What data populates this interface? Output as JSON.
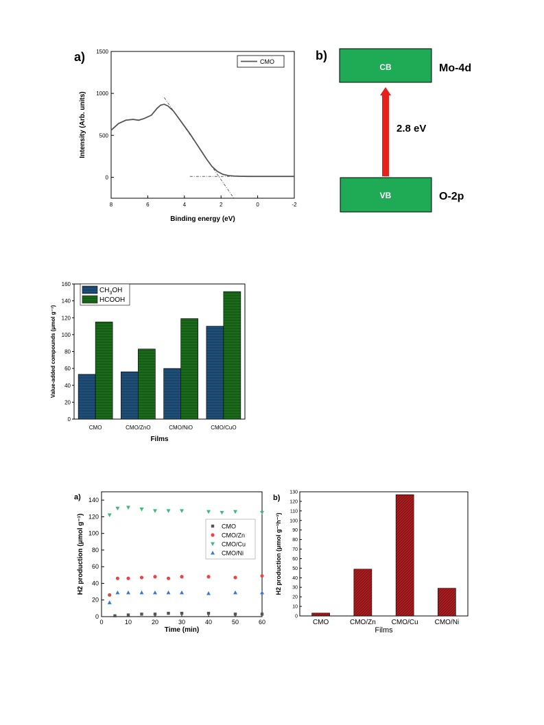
{
  "colors": {
    "band_green": "#1faa56",
    "arrow_red": "#e5211b",
    "bar_blue": "#1f4e79",
    "bar_green": "#1a6b1a",
    "bar_red": "#b11a1a",
    "cmo": "#555555",
    "cmo_zn": "#e84646",
    "cmo_cu": "#3dba7a",
    "cmo_ni": "#3a78d6"
  },
  "figure1": {
    "panel_a_label": "a)",
    "panel_b_label": "b)",
    "diagram": {
      "cb_label": "CB",
      "vb_label": "VB",
      "cb_orbital": "Mo-4d",
      "vb_orbital": "O-2p",
      "gap_label": "2.8 eV"
    }
  },
  "figure3": {
    "panel_a_label": "a)",
    "panel_b_label": "b)"
  },
  "chart_data": [
    {
      "type": "line",
      "title": "",
      "xlabel": "Binding energy (eV)",
      "ylabel": "Intensity (Arb. units)",
      "xlim": [
        8,
        -2
      ],
      "ylim": [
        -250,
        1500
      ],
      "x_ticks": [
        8,
        6,
        4,
        2,
        0,
        -2
      ],
      "y_ticks": [
        0,
        500,
        1000,
        1500
      ],
      "legend": "top-right",
      "series": [
        {
          "name": "CMO",
          "x": [
            8,
            7.6,
            7.2,
            6.8,
            6.5,
            6.2,
            5.8,
            5.5,
            5.3,
            5.1,
            4.9,
            4.6,
            4.3,
            4.0,
            3.7,
            3.4,
            3.1,
            2.8,
            2.5,
            2.2,
            1.9,
            1.6,
            1.3,
            1.0,
            0.5,
            0,
            -0.5,
            -1,
            -1.5,
            -2
          ],
          "y": [
            560,
            640,
            680,
            690,
            680,
            700,
            740,
            820,
            860,
            870,
            850,
            790,
            700,
            610,
            520,
            420,
            320,
            220,
            130,
            70,
            35,
            20,
            15,
            12,
            10,
            10,
            10,
            10,
            10,
            10
          ]
        }
      ],
      "fit_lines": [
        {
          "x": [
            5.1,
            1.3
          ],
          "y": [
            950,
            -250
          ]
        },
        {
          "x": [
            3.7,
            0.5
          ],
          "y": [
            10,
            10
          ]
        }
      ]
    },
    {
      "type": "bar",
      "title": "",
      "xlabel": "Films",
      "ylabel": "Value-added compounds (μmol g⁻¹)",
      "categories": [
        "CMO",
        "CMO/ZnO",
        "CMO/NiO",
        "CMO/CuO"
      ],
      "ylim": [
        0,
        160
      ],
      "y_ticks": [
        0,
        20,
        40,
        60,
        80,
        100,
        120,
        140,
        160
      ],
      "legend": "top-left",
      "series": [
        {
          "name": "CH3OH",
          "name_main": "CH",
          "name_sub": "3",
          "name_tail": "OH",
          "values": [
            53,
            56,
            60,
            110
          ]
        },
        {
          "name": "HCOOH",
          "values": [
            115,
            83,
            119,
            151
          ]
        }
      ]
    },
    {
      "type": "scatter",
      "title": "",
      "xlabel": "Time (min)",
      "ylabel": "H2 production (μmol g⁻¹)",
      "xlim": [
        0,
        60
      ],
      "ylim": [
        0,
        150
      ],
      "x_ticks": [
        0,
        10,
        20,
        30,
        40,
        50,
        60
      ],
      "y_ticks": [
        0,
        20,
        40,
        60,
        80,
        100,
        120,
        140
      ],
      "legend": "right",
      "series": [
        {
          "name": "CMO",
          "marker": "square",
          "x": [
            5,
            10,
            15,
            20,
            25,
            30,
            40,
            50,
            60
          ],
          "y": [
            1,
            2,
            3,
            3,
            4,
            4,
            4,
            3,
            3
          ]
        },
        {
          "name": "CMO/Zn",
          "marker": "circle",
          "x": [
            3,
            6,
            10,
            15,
            20,
            25,
            30,
            40,
            50,
            60
          ],
          "y": [
            26,
            46,
            46,
            47,
            48,
            46,
            48,
            48,
            47,
            49
          ]
        },
        {
          "name": "CMO/Cu",
          "marker": "triangle-down",
          "x": [
            3,
            6,
            10,
            15,
            20,
            25,
            30,
            40,
            45,
            50,
            60
          ],
          "y": [
            122,
            130,
            131,
            129,
            127,
            127,
            127,
            126,
            125,
            126,
            125
          ]
        },
        {
          "name": "CMO/Ni",
          "marker": "triangle-up",
          "x": [
            3,
            6,
            10,
            15,
            20,
            25,
            30,
            40,
            50,
            60
          ],
          "y": [
            17,
            29,
            29,
            29,
            29,
            29,
            29,
            28,
            29,
            29
          ]
        }
      ]
    },
    {
      "type": "bar",
      "title": "",
      "xlabel": "Films",
      "ylabel": "H2 production (μmol g⁻¹h⁻¹)",
      "categories": [
        "CMO",
        "CMO/Zn",
        "CMO/Cu",
        "CMO/Ni"
      ],
      "ylim": [
        0,
        130
      ],
      "y_ticks": [
        0,
        10,
        20,
        30,
        40,
        50,
        60,
        70,
        80,
        90,
        100,
        110,
        120,
        130
      ],
      "series": [
        {
          "values": [
            3,
            49,
            127,
            29
          ]
        }
      ]
    }
  ]
}
